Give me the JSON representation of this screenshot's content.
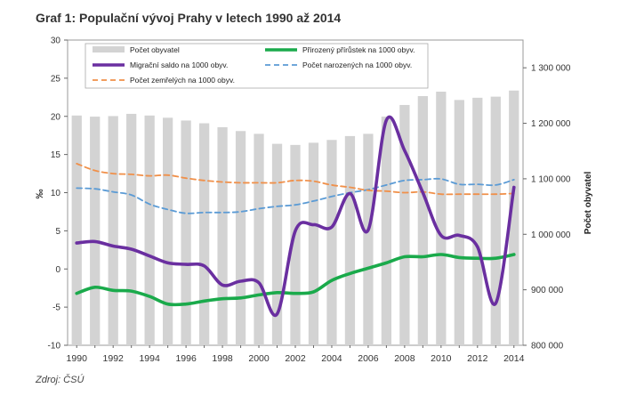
{
  "title": "Graf 1: Populační vývoj Prahy v letech 1990 až 2014",
  "source": "Zdroj: ČSÚ",
  "chart_data": {
    "type": "bar+line",
    "x": [
      1990,
      1991,
      1992,
      1993,
      1994,
      1995,
      1996,
      1997,
      1998,
      1999,
      2000,
      2001,
      2002,
      2003,
      2004,
      2005,
      2006,
      2007,
      2008,
      2009,
      2010,
      2011,
      2012,
      2013,
      2014
    ],
    "x_tick_labels": [
      "1990",
      "1992",
      "1994",
      "1996",
      "1998",
      "2000",
      "2002",
      "2004",
      "2006",
      "2008",
      "2010",
      "2012",
      "2014"
    ],
    "left_axis": {
      "label": "‰",
      "ylim": [
        -10,
        30
      ],
      "ticks": [
        "30",
        "25",
        "20",
        "15",
        "10",
        "5",
        "0",
        "-5",
        "-10"
      ]
    },
    "right_axis": {
      "label": "Počet obyvatel",
      "ylim": [
        800000,
        1350000
      ],
      "ticks": [
        "1 300 000",
        "1 200 000",
        "1 100 000",
        "1 000 000",
        "900 000",
        "800 000"
      ]
    },
    "legend": {
      "placement": "top-left",
      "items": [
        {
          "name": "Počet obyvatel",
          "color": "#d3d3d3",
          "kind": "bar"
        },
        {
          "name": "Přirozený přírůstek na 1000 obyv.",
          "color": "#1aaa4b",
          "kind": "line"
        },
        {
          "name": "Migrační saldo na 1000 obyv.",
          "color": "#6a2fa0",
          "kind": "line"
        },
        {
          "name": "Počet narozených na 1000 obyv.",
          "color": "#5b9bd5",
          "kind": "dashed"
        },
        {
          "name": "Počet zemřelých na 1000 obyv.",
          "color": "#f0904a",
          "kind": "dashed"
        }
      ]
    },
    "series": [
      {
        "name": "Počet obyvatel",
        "axis": "right",
        "type": "bar",
        "color": "#d3d3d3",
        "values": [
          1214000,
          1212000,
          1213000,
          1217000,
          1214000,
          1210000,
          1205000,
          1200000,
          1193000,
          1186000,
          1181000,
          1163000,
          1161000,
          1165000,
          1170000,
          1177000,
          1181000,
          1212000,
          1233000,
          1249000,
          1257000,
          1242000,
          1246000,
          1248000,
          1259000
        ]
      },
      {
        "name": "Přirozený přírůstek na 1000 obyv.",
        "axis": "left",
        "type": "line",
        "color": "#1aaa4b",
        "values": [
          -3.2,
          -2.4,
          -2.8,
          -2.9,
          -3.6,
          -4.6,
          -4.6,
          -4.2,
          -3.9,
          -3.8,
          -3.4,
          -3.1,
          -3.2,
          -3.0,
          -1.5,
          -0.6,
          0.1,
          0.8,
          1.6,
          1.6,
          1.9,
          1.5,
          1.4,
          1.4,
          1.9
        ]
      },
      {
        "name": "Migrační saldo na 1000 obyv.",
        "axis": "left",
        "type": "line",
        "color": "#6a2fa0",
        "values": [
          3.4,
          3.6,
          3.0,
          2.6,
          1.7,
          0.8,
          0.6,
          0.4,
          -2.1,
          -1.6,
          -1.8,
          -5.9,
          5.0,
          5.8,
          5.5,
          9.9,
          5.1,
          19.5,
          15.5,
          10.0,
          4.4,
          4.4,
          2.9,
          -4.5,
          10.7
        ]
      },
      {
        "name": "Počet narozených na 1000 obyv.",
        "axis": "left",
        "type": "dashed",
        "color": "#5b9bd5",
        "values": [
          10.6,
          10.5,
          10.1,
          9.7,
          8.5,
          7.8,
          7.3,
          7.4,
          7.4,
          7.5,
          7.9,
          8.2,
          8.4,
          8.9,
          9.5,
          10.0,
          10.4,
          11.0,
          11.6,
          11.7,
          11.8,
          11.1,
          11.1,
          11.0,
          11.7
        ]
      },
      {
        "name": "Počet zemřelých na 1000 obyv.",
        "axis": "left",
        "type": "dashed",
        "color": "#f0904a",
        "values": [
          13.8,
          12.9,
          12.5,
          12.4,
          12.2,
          12.3,
          11.9,
          11.6,
          11.4,
          11.3,
          11.3,
          11.3,
          11.6,
          11.5,
          11.0,
          10.7,
          10.3,
          10.2,
          10.0,
          10.1,
          9.8,
          9.8,
          9.8,
          9.8,
          9.9
        ]
      }
    ]
  }
}
